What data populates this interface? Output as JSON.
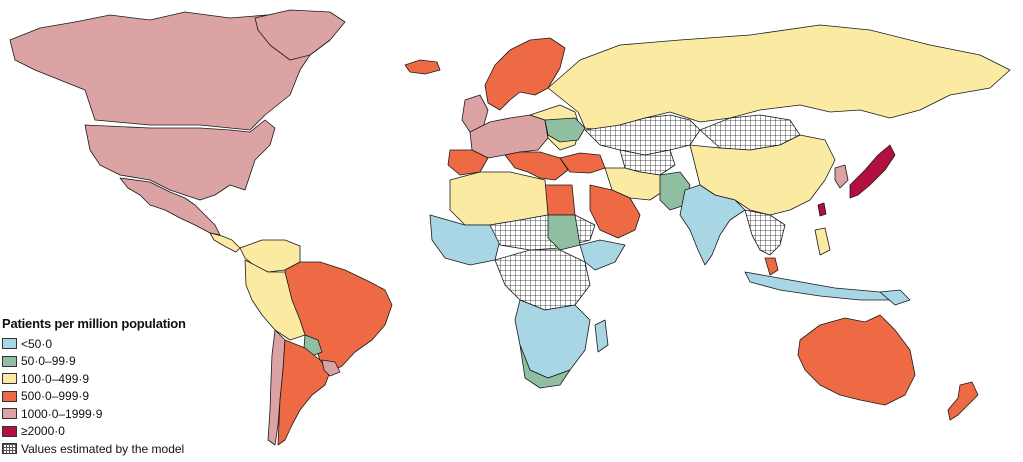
{
  "legend": {
    "title": "Patients per million population",
    "items": [
      {
        "label": "<50·0",
        "color": "#a8d6e4"
      },
      {
        "label": "50·0–99·9",
        "color": "#8fbfa0"
      },
      {
        "label": "100·0–499·9",
        "color": "#fbeba2"
      },
      {
        "label": "500·0–999·9",
        "color": "#ee6a44"
      },
      {
        "label": "1000·0–1999·9",
        "color": "#dba3a3"
      },
      {
        "label": "≥2000·0",
        "color": "#b3103f"
      }
    ],
    "hatch_label": "Values estimated by the model"
  },
  "colors": {
    "lt50": "#a8d6e4",
    "c50_99": "#8fbfa0",
    "c100_499": "#fbeba2",
    "c500_999": "#ee6a44",
    "c1000_1999": "#dba3a3",
    "ge2000": "#b3103f",
    "estimated_pattern": "hatch-grid"
  }
}
